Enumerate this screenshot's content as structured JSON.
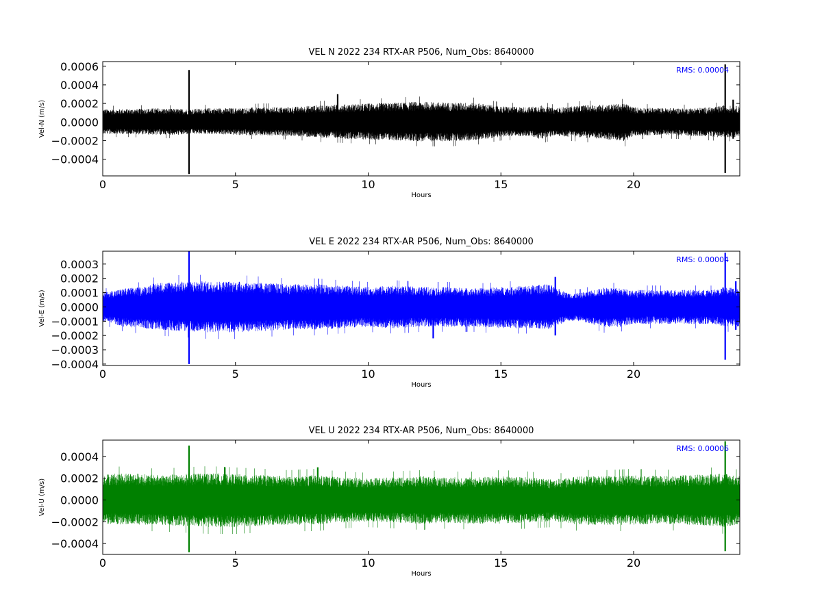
{
  "chart_data": [
    {
      "type": "line",
      "title": "VEL N 2022 234 RTX-AR  P506, Num_Obs: 8640000",
      "xlabel": "Hours",
      "ylabel": "Vel-N (m/s)",
      "color": "#000000",
      "xlim": [
        0,
        24
      ],
      "ylim": [
        -0.00058,
        0.00065
      ],
      "xticks": [
        0,
        5,
        10,
        15,
        20
      ],
      "yticks": [
        -0.0004,
        -0.0002,
        0.0,
        0.0002,
        0.0004,
        0.0006
      ],
      "ytick_labels": [
        "−0.0004",
        "−0.0002",
        "0.0000",
        "0.0002",
        "0.0004",
        "0.0006"
      ],
      "annotation": "RMS:  0.00004",
      "envelope": {
        "x": [
          0,
          1,
          2,
          3,
          3.2,
          4,
          5,
          6,
          7,
          8,
          9,
          10,
          11,
          12,
          13,
          14,
          15,
          16,
          16.5,
          17,
          18,
          19,
          19.7,
          20,
          21,
          22,
          23,
          23.4,
          24
        ],
        "upper": [
          0.00014,
          0.00014,
          0.00015,
          0.00014,
          0.00014,
          0.00015,
          0.00015,
          0.00016,
          0.00016,
          0.00018,
          0.00019,
          0.0002,
          0.00021,
          0.00022,
          0.00021,
          0.00021,
          0.00017,
          0.00016,
          0.00018,
          0.00015,
          0.00018,
          0.00019,
          0.0002,
          0.00016,
          0.00015,
          0.00015,
          0.00016,
          0.00018,
          0.00017
        ],
        "lower": [
          -0.00013,
          -0.00013,
          -0.00014,
          -0.00014,
          -0.00013,
          -0.00013,
          -0.00014,
          -0.00015,
          -0.00015,
          -0.00017,
          -0.00018,
          -0.00019,
          -0.0002,
          -0.00021,
          -0.00021,
          -0.0002,
          -0.00016,
          -0.00015,
          -0.00019,
          -0.00015,
          -0.00017,
          -0.00019,
          -0.00021,
          -0.00015,
          -0.00014,
          -0.00015,
          -0.00016,
          -0.00017,
          -0.00016
        ]
      },
      "spikes": [
        {
          "x": 3.25,
          "y": [
            -0.00056,
            0.00056
          ]
        },
        {
          "x": 8.85,
          "y": [
            -0.00016,
            0.0003
          ]
        },
        {
          "x": 23.45,
          "y": [
            -0.00055,
            0.00062
          ]
        },
        {
          "x": 23.75,
          "y": [
            -0.00018,
            0.00024
          ]
        }
      ]
    },
    {
      "type": "line",
      "title": "VEL E 2022 234 RTX-AR  P506, Num_Obs: 8640000",
      "xlabel": "Hours",
      "ylabel": "Vel-E (m/s)",
      "color": "#0000ff",
      "xlim": [
        0,
        24
      ],
      "ylim": [
        -0.00041,
        0.00039
      ],
      "xticks": [
        0,
        5,
        10,
        15,
        20
      ],
      "yticks": [
        -0.0004,
        -0.0003,
        -0.0002,
        -0.0001,
        0.0,
        0.0001,
        0.0002,
        0.0003
      ],
      "ytick_labels": [
        "−0.0004",
        "−0.0003",
        "−0.0002",
        "−0.0001",
        "0.0000",
        "0.0001",
        "0.0002",
        "0.0003"
      ],
      "annotation": "RMS:  0.00004",
      "envelope": {
        "x": [
          0,
          0.8,
          1.5,
          2,
          3,
          4,
          5,
          6,
          7,
          8,
          9,
          10,
          11,
          12,
          13,
          14,
          15,
          16,
          16.8,
          17.5,
          18,
          19,
          19.5,
          20,
          21,
          22,
          23,
          23.4,
          24
        ],
        "upper": [
          0.0001,
          0.00013,
          0.00014,
          0.00017,
          0.00018,
          0.00018,
          0.00018,
          0.00017,
          0.00016,
          0.00016,
          0.00015,
          0.00014,
          0.00015,
          0.00014,
          0.00014,
          0.00013,
          0.00014,
          0.00015,
          0.00016,
          0.0001,
          0.0001,
          0.00014,
          0.00013,
          0.00012,
          0.00012,
          0.00012,
          0.00012,
          0.00014,
          0.00013
        ],
        "lower": [
          -0.0001,
          -0.00014,
          -0.00015,
          -0.00016,
          -0.00017,
          -0.00018,
          -0.00018,
          -0.00017,
          -0.00016,
          -0.00016,
          -0.00015,
          -0.00014,
          -0.00015,
          -0.00014,
          -0.00014,
          -0.00014,
          -0.00015,
          -0.00015,
          -0.00016,
          -0.0001,
          -0.0001,
          -0.00015,
          -0.00014,
          -0.00012,
          -0.00012,
          -0.00012,
          -0.00012,
          -0.00014,
          -0.00014
        ]
      },
      "spikes": [
        {
          "x": 3.25,
          "y": [
            -0.0004,
            0.00039
          ]
        },
        {
          "x": 12.45,
          "y": [
            -0.00022,
            0.00012
          ]
        },
        {
          "x": 17.05,
          "y": [
            -0.0002,
            0.00021
          ]
        },
        {
          "x": 23.45,
          "y": [
            -0.00037,
            0.00038
          ]
        },
        {
          "x": 23.85,
          "y": [
            -0.00016,
            0.00018
          ]
        }
      ]
    },
    {
      "type": "line",
      "title": "VEL U 2022 234 RTX-AR  P506, Num_Obs: 8640000",
      "xlabel": "Hours",
      "ylabel": "Vel-U (m/s)",
      "color": "#008000",
      "xlim": [
        0,
        24
      ],
      "ylim": [
        -0.0005,
        0.00055
      ],
      "xticks": [
        0,
        5,
        10,
        15,
        20
      ],
      "yticks": [
        -0.0004,
        -0.0002,
        0.0,
        0.0002,
        0.0004
      ],
      "ytick_labels": [
        "−0.0004",
        "−0.0002",
        "0.0000",
        "0.0002",
        "0.0004"
      ],
      "annotation": "RMS:  0.00006",
      "envelope": {
        "x": [
          0,
          1,
          2,
          3,
          4,
          5,
          6,
          7,
          8,
          9,
          10,
          11,
          12,
          13,
          14,
          15,
          16,
          17,
          18,
          19,
          20,
          21,
          22,
          23,
          23.4,
          24
        ],
        "upper": [
          0.00024,
          0.00025,
          0.00023,
          0.00024,
          0.00025,
          0.00024,
          0.00023,
          0.00022,
          0.00023,
          0.00021,
          0.0002,
          0.00021,
          0.00022,
          0.00021,
          0.00021,
          0.00022,
          0.00021,
          0.00019,
          0.00022,
          0.00022,
          0.00023,
          0.00022,
          0.00023,
          0.00024,
          0.00025,
          0.00022
        ],
        "lower": [
          -0.00022,
          -0.00023,
          -0.00023,
          -0.00024,
          -0.00025,
          -0.00025,
          -0.00024,
          -0.00023,
          -0.00023,
          -0.00021,
          -0.0002,
          -0.00021,
          -0.00022,
          -0.00021,
          -0.00022,
          -0.00022,
          -0.00021,
          -0.0002,
          -0.00023,
          -0.00023,
          -0.00023,
          -0.00022,
          -0.00023,
          -0.00024,
          -0.00025,
          -0.00022
        ]
      },
      "spikes": [
        {
          "x": 3.25,
          "y": [
            -0.00048,
            0.0005
          ]
        },
        {
          "x": 4.6,
          "y": [
            -0.00022,
            0.0003
          ]
        },
        {
          "x": 8.1,
          "y": [
            -0.00021,
            0.0003
          ]
        },
        {
          "x": 23.45,
          "y": [
            -0.00047,
            0.00054
          ]
        }
      ]
    }
  ]
}
